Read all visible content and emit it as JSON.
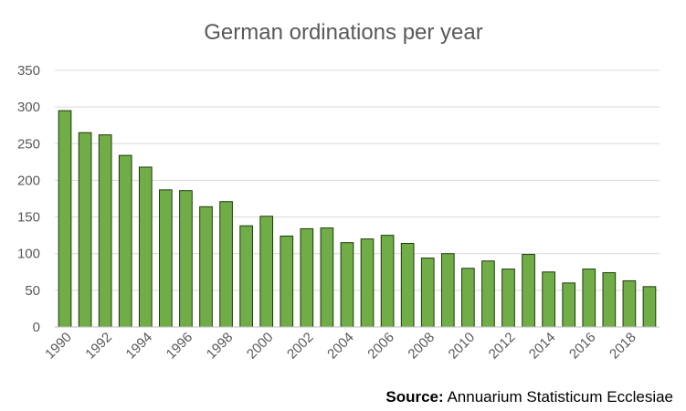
{
  "chart_data": {
    "type": "bar",
    "title": "German ordinations per year",
    "categories": [
      1990,
      1991,
      1992,
      1993,
      1994,
      1995,
      1996,
      1997,
      1998,
      1999,
      2000,
      2001,
      2002,
      2003,
      2004,
      2005,
      2006,
      2007,
      2008,
      2009,
      2010,
      2011,
      2012,
      2013,
      2014,
      2015,
      2016,
      2017,
      2018,
      2019
    ],
    "values": [
      295,
      265,
      262,
      234,
      218,
      187,
      186,
      164,
      171,
      138,
      151,
      124,
      134,
      135,
      115,
      120,
      125,
      114,
      94,
      100,
      80,
      90,
      79,
      99,
      75,
      60,
      79,
      74,
      63,
      55
    ],
    "x_tick_labels": [
      "1990",
      "1992",
      "1994",
      "1996",
      "1998",
      "2000",
      "2002",
      "2004",
      "2006",
      "2008",
      "2010",
      "2012",
      "2014",
      "2016",
      "2018"
    ],
    "y_ticks": [
      0,
      50,
      100,
      150,
      200,
      250,
      300,
      350
    ],
    "ylim": [
      0,
      350
    ],
    "xlabel": "",
    "ylabel": "",
    "grid": "horizontal",
    "legend": "none",
    "bar_color": "#70ad47"
  },
  "source": {
    "label": "Source:",
    "text": "Annuarium Statisticum Ecclesiae"
  }
}
